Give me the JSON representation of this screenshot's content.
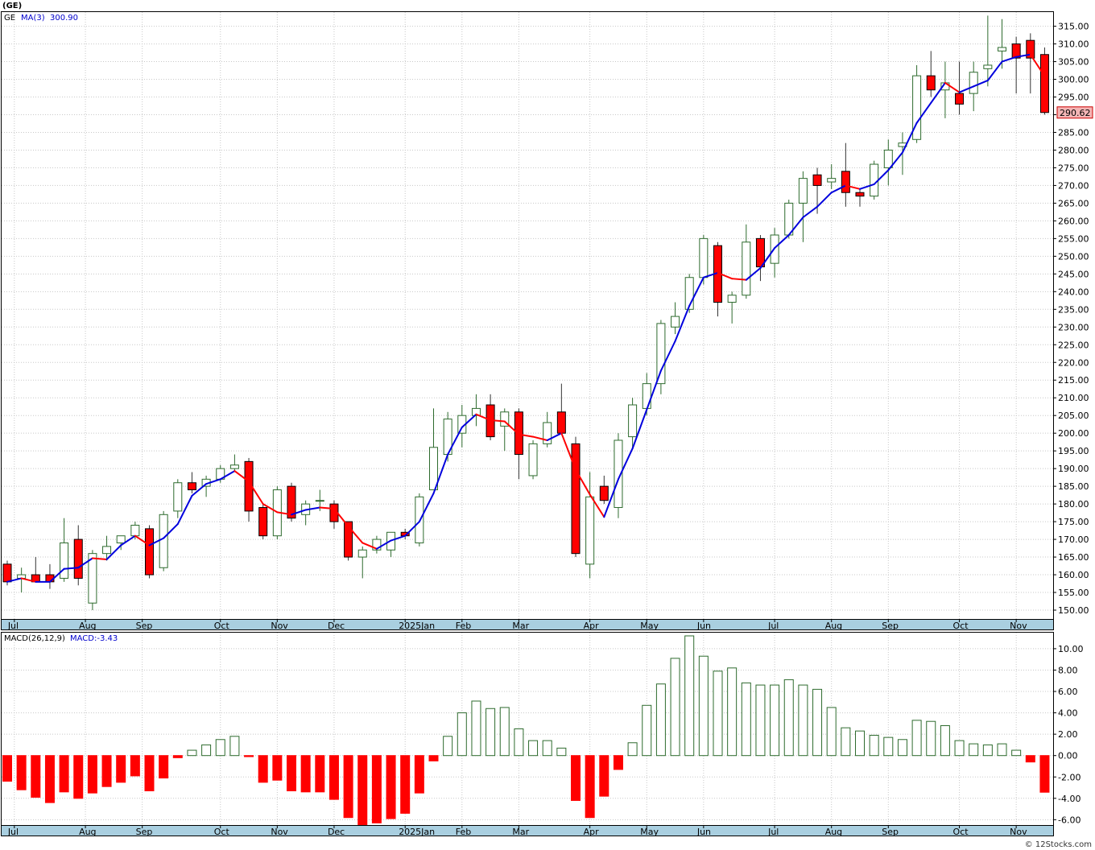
{
  "header": {
    "symbol_title": "(GE)",
    "ticker": "GE",
    "ma_label": "MA(3)",
    "ma_value": "300.90"
  },
  "macd_header": {
    "label": "MACD(26,12,9)",
    "value_label": "MACD:-3.43"
  },
  "last_price": "290.62",
  "copyright": "© 12Stocks.com",
  "colors": {
    "up": "#2e6b2e",
    "down": "#ff0000",
    "ma_up": "#0000dd",
    "ma_down": "#ff0000",
    "axis_band": "#a9cfe0",
    "grid": "#c8c8c8",
    "price_tag": "#f4b6b6"
  },
  "chart_data": [
    {
      "type": "candlestick",
      "y_ticks": [
        150,
        155,
        160,
        165,
        170,
        175,
        180,
        185,
        190,
        195,
        200,
        205,
        210,
        215,
        220,
        225,
        230,
        235,
        240,
        245,
        250,
        255,
        260,
        265,
        270,
        275,
        280,
        285,
        290,
        295,
        300,
        305,
        310,
        315
      ],
      "y_tick_labels": [
        "150.00",
        "155.00",
        "160.00",
        "165.00",
        "170.00",
        "175.00",
        "180.00",
        "185.00",
        "190.00",
        "195.00",
        "200.00",
        "205.00",
        "210.00",
        "215.00",
        "220.00",
        "225.00",
        "230.00",
        "235.00",
        "240.00",
        "245.00",
        "250.00",
        "255.00",
        "260.00",
        "265.00",
        "270.00",
        "275.00",
        "280.00",
        "285.00",
        "290.00",
        "295.00",
        "300.00",
        "305.00",
        "310.00",
        "315.00"
      ],
      "ylim": [
        147.5,
        319
      ],
      "x_labels": [
        "Jul",
        "Aug",
        "Sep",
        "Oct",
        "Nov",
        "Dec",
        "2025Jan",
        "Feb",
        "Mar",
        "Apr",
        "May",
        "Jun",
        "Jul",
        "Aug",
        "Sep",
        "Oct",
        "Nov"
      ],
      "x_label_weeks": [
        0.5,
        5.5,
        9.5,
        15,
        19,
        23,
        28,
        32,
        36,
        41,
        45,
        49,
        54,
        58,
        62,
        67,
        71
      ],
      "candles": [
        {
          "o": 163,
          "h": 164,
          "l": 157,
          "c": 158
        },
        {
          "o": 159,
          "h": 162,
          "l": 155,
          "c": 160
        },
        {
          "o": 160,
          "h": 165,
          "l": 158,
          "c": 158
        },
        {
          "o": 160,
          "h": 163,
          "l": 156,
          "c": 158
        },
        {
          "o": 159,
          "h": 176,
          "l": 158,
          "c": 169
        },
        {
          "o": 170,
          "h": 174,
          "l": 157,
          "c": 159
        },
        {
          "o": 152,
          "h": 167,
          "l": 150,
          "c": 166
        },
        {
          "o": 166,
          "h": 171,
          "l": 164,
          "c": 168
        },
        {
          "o": 169,
          "h": 171,
          "l": 167,
          "c": 171
        },
        {
          "o": 171,
          "h": 175,
          "l": 170,
          "c": 174
        },
        {
          "o": 173,
          "h": 174,
          "l": 159,
          "c": 160
        },
        {
          "o": 162,
          "h": 178,
          "l": 161,
          "c": 177
        },
        {
          "o": 178,
          "h": 187,
          "l": 176,
          "c": 186
        },
        {
          "o": 186,
          "h": 189,
          "l": 183,
          "c": 184
        },
        {
          "o": 185,
          "h": 188,
          "l": 182,
          "c": 187
        },
        {
          "o": 187,
          "h": 191,
          "l": 186,
          "c": 190
        },
        {
          "o": 190,
          "h": 194,
          "l": 189,
          "c": 191
        },
        {
          "o": 192,
          "h": 193,
          "l": 175,
          "c": 178
        },
        {
          "o": 179,
          "h": 180,
          "l": 170,
          "c": 171
        },
        {
          "o": 171,
          "h": 185,
          "l": 170,
          "c": 184
        },
        {
          "o": 185,
          "h": 186,
          "l": 175,
          "c": 176
        },
        {
          "o": 177,
          "h": 181,
          "l": 174,
          "c": 180
        },
        {
          "o": 181,
          "h": 184,
          "l": 178,
          "c": 181
        },
        {
          "o": 180,
          "h": 181,
          "l": 173,
          "c": 175
        },
        {
          "o": 175,
          "h": 175,
          "l": 164,
          "c": 165
        },
        {
          "o": 165,
          "h": 168,
          "l": 159,
          "c": 167
        },
        {
          "o": 167,
          "h": 171,
          "l": 166,
          "c": 170
        },
        {
          "o": 167,
          "h": 172,
          "l": 165,
          "c": 172
        },
        {
          "o": 172,
          "h": 173,
          "l": 170,
          "c": 171
        },
        {
          "o": 169,
          "h": 183,
          "l": 168,
          "c": 182
        },
        {
          "o": 184,
          "h": 207,
          "l": 184,
          "c": 196
        },
        {
          "o": 194,
          "h": 206,
          "l": 192,
          "c": 204
        },
        {
          "o": 200,
          "h": 208,
          "l": 196,
          "c": 205
        },
        {
          "o": 205,
          "h": 211,
          "l": 202,
          "c": 207
        },
        {
          "o": 208,
          "h": 211,
          "l": 198,
          "c": 199
        },
        {
          "o": 202,
          "h": 207,
          "l": 195,
          "c": 206
        },
        {
          "o": 206,
          "h": 207,
          "l": 187,
          "c": 194
        },
        {
          "o": 188,
          "h": 198,
          "l": 187,
          "c": 197
        },
        {
          "o": 197,
          "h": 206,
          "l": 196,
          "c": 203
        },
        {
          "o": 206,
          "h": 214,
          "l": 200,
          "c": 200
        },
        {
          "o": 197,
          "h": 199,
          "l": 165,
          "c": 166
        },
        {
          "o": 163,
          "h": 189,
          "l": 159,
          "c": 182
        },
        {
          "o": 185,
          "h": 188,
          "l": 180,
          "c": 181
        },
        {
          "o": 179,
          "h": 200,
          "l": 176,
          "c": 198
        },
        {
          "o": 199,
          "h": 210,
          "l": 196,
          "c": 208
        },
        {
          "o": 207,
          "h": 217,
          "l": 205,
          "c": 214
        },
        {
          "o": 214,
          "h": 232,
          "l": 211,
          "c": 231
        },
        {
          "o": 230,
          "h": 237,
          "l": 228,
          "c": 233
        },
        {
          "o": 235,
          "h": 245,
          "l": 234,
          "c": 244
        },
        {
          "o": 244,
          "h": 256,
          "l": 242,
          "c": 255
        },
        {
          "o": 253,
          "h": 254,
          "l": 233,
          "c": 237
        },
        {
          "o": 237,
          "h": 240,
          "l": 231,
          "c": 239
        },
        {
          "o": 239,
          "h": 259,
          "l": 238,
          "c": 254
        },
        {
          "o": 255,
          "h": 256,
          "l": 243,
          "c": 247
        },
        {
          "o": 248,
          "h": 258,
          "l": 244,
          "c": 256
        },
        {
          "o": 256,
          "h": 266,
          "l": 255,
          "c": 265
        },
        {
          "o": 265,
          "h": 274,
          "l": 254,
          "c": 272
        },
        {
          "o": 273,
          "h": 275,
          "l": 262,
          "c": 270
        },
        {
          "o": 271,
          "h": 276,
          "l": 269,
          "c": 272
        },
        {
          "o": 274,
          "h": 282,
          "l": 264,
          "c": 268
        },
        {
          "o": 268,
          "h": 269,
          "l": 264,
          "c": 267
        },
        {
          "o": 267,
          "h": 277,
          "l": 266,
          "c": 276
        },
        {
          "o": 275,
          "h": 283,
          "l": 270,
          "c": 280
        },
        {
          "o": 281,
          "h": 285,
          "l": 273,
          "c": 282
        },
        {
          "o": 283,
          "h": 304,
          "l": 282,
          "c": 301
        },
        {
          "o": 301,
          "h": 308,
          "l": 295,
          "c": 297
        },
        {
          "o": 297,
          "h": 305,
          "l": 289,
          "c": 299
        },
        {
          "o": 296,
          "h": 305,
          "l": 290,
          "c": 293
        },
        {
          "o": 296,
          "h": 305,
          "l": 291,
          "c": 302
        },
        {
          "o": 303,
          "h": 318,
          "l": 298,
          "c": 304
        },
        {
          "o": 308,
          "h": 317,
          "l": 303,
          "c": 309
        },
        {
          "o": 310,
          "h": 312,
          "l": 296,
          "c": 306
        },
        {
          "o": 311,
          "h": 313,
          "l": 296,
          "c": 306
        },
        {
          "o": 307,
          "h": 309,
          "l": 290,
          "c": 290.62
        }
      ],
      "ma3": [
        158,
        159,
        158,
        158,
        161.67,
        162,
        164.67,
        164.33,
        168.33,
        171,
        168.33,
        170.33,
        174.33,
        182.33,
        185.67,
        187,
        189.33,
        186.33,
        180,
        177.67,
        177,
        178.33,
        179,
        178.67,
        173.67,
        169,
        167.33,
        169.67,
        171,
        175,
        183,
        194,
        201.67,
        205.33,
        203.67,
        203.33,
        199.67,
        199,
        198,
        200,
        189.67,
        182.67,
        176.33,
        187,
        195.67,
        206.67,
        217.67,
        226,
        236,
        244,
        245.33,
        243.67,
        243.33,
        246.67,
        252.33,
        256,
        261,
        264,
        268,
        270,
        269,
        270.33,
        274.33,
        279.33,
        287.67,
        293.33,
        299,
        296.33,
        298,
        299.67,
        305,
        306.33,
        307,
        300.9
      ]
    },
    {
      "type": "bar",
      "title": "MACD(26,12,9)",
      "y_ticks": [
        -6,
        -4,
        -2,
        0,
        2,
        4,
        6,
        8,
        10
      ],
      "y_tick_labels": [
        "-6.00",
        "-4.00",
        "-2.00",
        "0.00",
        "2.00",
        "4.00",
        "6.00",
        "8.00",
        "10.00"
      ],
      "ylim": [
        -6.5,
        11.5
      ],
      "values": [
        -2.4,
        -3.2,
        -3.9,
        -4.4,
        -3.4,
        -4.0,
        -3.5,
        -2.9,
        -2.5,
        -1.9,
        -3.3,
        -2.1,
        -0.2,
        0.5,
        1.0,
        1.5,
        1.8,
        -0.1,
        -2.5,
        -2.3,
        -3.3,
        -3.4,
        -3.4,
        -4.1,
        -5.8,
        -6.5,
        -6.3,
        -5.9,
        -5.4,
        -3.5,
        -0.5,
        1.8,
        4.0,
        5.1,
        4.4,
        4.5,
        2.5,
        1.4,
        1.4,
        0.7,
        -4.2,
        -5.8,
        -3.8,
        -1.3,
        1.2,
        4.7,
        6.7,
        9.1,
        11.2,
        9.3,
        7.9,
        8.2,
        6.8,
        6.6,
        6.6,
        7.1,
        6.6,
        6.2,
        4.5,
        2.6,
        2.3,
        1.9,
        1.7,
        1.5,
        3.3,
        3.2,
        2.8,
        1.4,
        1.1,
        1.0,
        1.1,
        0.5,
        -0.6,
        -3.43
      ]
    }
  ]
}
